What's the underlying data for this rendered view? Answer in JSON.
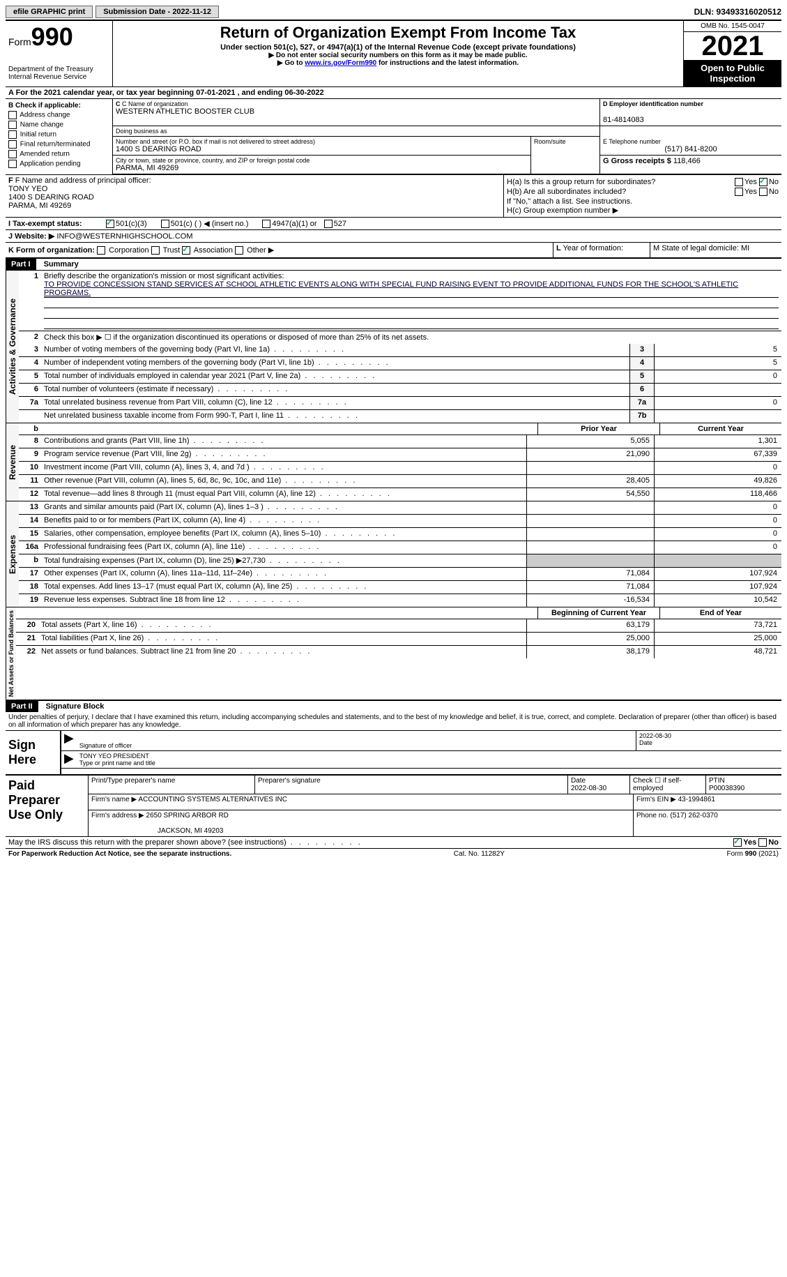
{
  "topbar": {
    "efile": "efile GRAPHIC print",
    "submission": "Submission Date - 2022-11-12",
    "dln": "DLN: 93493316020512"
  },
  "header": {
    "form_prefix": "Form",
    "form_number": "990",
    "dept": "Department of the Treasury",
    "irs": "Internal Revenue Service",
    "title": "Return of Organization Exempt From Income Tax",
    "subtitle": "Under section 501(c), 527, or 4947(a)(1) of the Internal Revenue Code (except private foundations)",
    "note1": "▶ Do not enter social security numbers on this form as it may be made public.",
    "note2_pre": "▶ Go to ",
    "note2_link": "www.irs.gov/Form990",
    "note2_post": " for instructions and the latest information.",
    "omb": "OMB No. 1545-0047",
    "year": "2021",
    "open": "Open to Public Inspection"
  },
  "sectionA": "A For the 2021 calendar year, or tax year beginning 07-01-2021   , and ending 06-30-2022",
  "colB": {
    "label": "B Check if applicable:",
    "items": [
      "Address change",
      "Name change",
      "Initial return",
      "Final return/terminated",
      "Amended return",
      "Application pending"
    ]
  },
  "colC": {
    "name_label": "C Name of organization",
    "name": "WESTERN ATHLETIC BOOSTER CLUB",
    "dba_label": "Doing business as",
    "addr_label": "Number and street (or P.O. box if mail is not delivered to street address)",
    "addr": "1400 S DEARING ROAD",
    "room_label": "Room/suite",
    "city_label": "City or town, state or province, country, and ZIP or foreign postal code",
    "city": "PARMA, MI  49269"
  },
  "colD": {
    "ein_label": "D Employer identification number",
    "ein": "81-4814083",
    "phone_label": "E Telephone number",
    "phone": "(517) 841-8200",
    "gross_label": "G Gross receipts $",
    "gross": "118,466"
  },
  "sectionF": {
    "label": "F Name and address of principal officer:",
    "name": "TONY YEO",
    "addr1": "1400 S DEARING ROAD",
    "addr2": "PARMA, MI  49269"
  },
  "sectionH": {
    "ha": "H(a)  Is this a group return for subordinates?",
    "hb": "H(b)  Are all subordinates included?",
    "hb_note": "If \"No,\" attach a list. See instructions.",
    "hc": "H(c)  Group exemption number ▶"
  },
  "rowI": {
    "label": "I  Tax-exempt status:",
    "opts": [
      "501(c)(3)",
      "501(c) (  ) ◀ (insert no.)",
      "4947(a)(1) or",
      "527"
    ]
  },
  "rowJ": {
    "label": "J  Website: ▶",
    "value": "INFO@WESTERNHIGHSCHOOL.COM"
  },
  "rowK": {
    "label": "K Form of organization:",
    "opts": [
      "Corporation",
      "Trust",
      "Association",
      "Other ▶"
    ],
    "lyear": "L Year of formation:",
    "mstate": "M State of legal domicile: MI"
  },
  "part1": {
    "header": "Part I",
    "title": "Summary",
    "mission_label": "Briefly describe the organization's mission or most significant activities:",
    "mission": "TO PROVIDE CONCESSION STAND SERVICES AT SCHOOL ATHLETIC EVENTS ALONG WITH SPECIAL FUND RAISING EVENT TO PROVIDE ADDITIONAL FUNDS FOR THE SCHOOL'S ATHLETIC PROGRAMS.",
    "line2": "Check this box ▶ ☐  if the organization discontinued its operations or disposed of more than 25% of its net assets.",
    "sides": {
      "ag": "Activities & Governance",
      "rev": "Revenue",
      "exp": "Expenses",
      "net": "Net Assets or Fund Balances"
    },
    "rows_ag": [
      {
        "n": "3",
        "d": "Number of voting members of the governing body (Part VI, line 1a)",
        "b": "3",
        "v": "5"
      },
      {
        "n": "4",
        "d": "Number of independent voting members of the governing body (Part VI, line 1b)",
        "b": "4",
        "v": "5"
      },
      {
        "n": "5",
        "d": "Total number of individuals employed in calendar year 2021 (Part V, line 2a)",
        "b": "5",
        "v": "0"
      },
      {
        "n": "6",
        "d": "Total number of volunteers (estimate if necessary)",
        "b": "6",
        "v": ""
      },
      {
        "n": "7a",
        "d": "Total unrelated business revenue from Part VIII, column (C), line 12",
        "b": "7a",
        "v": "0"
      },
      {
        "n": "",
        "d": "Net unrelated business taxable income from Form 990-T, Part I, line 11",
        "b": "7b",
        "v": ""
      }
    ],
    "col_prior": "Prior Year",
    "col_current": "Current Year",
    "rows_rev": [
      {
        "n": "8",
        "d": "Contributions and grants (Part VIII, line 1h)",
        "p": "5,055",
        "c": "1,301"
      },
      {
        "n": "9",
        "d": "Program service revenue (Part VIII, line 2g)",
        "p": "21,090",
        "c": "67,339"
      },
      {
        "n": "10",
        "d": "Investment income (Part VIII, column (A), lines 3, 4, and 7d )",
        "p": "",
        "c": "0"
      },
      {
        "n": "11",
        "d": "Other revenue (Part VIII, column (A), lines 5, 6d, 8c, 9c, 10c, and 11e)",
        "p": "28,405",
        "c": "49,826"
      },
      {
        "n": "12",
        "d": "Total revenue—add lines 8 through 11 (must equal Part VIII, column (A), line 12)",
        "p": "54,550",
        "c": "118,466"
      }
    ],
    "rows_exp": [
      {
        "n": "13",
        "d": "Grants and similar amounts paid (Part IX, column (A), lines 1–3 )",
        "p": "",
        "c": "0"
      },
      {
        "n": "14",
        "d": "Benefits paid to or for members (Part IX, column (A), line 4)",
        "p": "",
        "c": "0"
      },
      {
        "n": "15",
        "d": "Salaries, other compensation, employee benefits (Part IX, column (A), lines 5–10)",
        "p": "",
        "c": "0"
      },
      {
        "n": "16a",
        "d": "Professional fundraising fees (Part IX, column (A), line 11e)",
        "p": "",
        "c": "0"
      },
      {
        "n": "b",
        "d": "Total fundraising expenses (Part IX, column (D), line 25) ▶27,730",
        "p": "gray",
        "c": "gray"
      },
      {
        "n": "17",
        "d": "Other expenses (Part IX, column (A), lines 11a–11d, 11f–24e)",
        "p": "71,084",
        "c": "107,924"
      },
      {
        "n": "18",
        "d": "Total expenses. Add lines 13–17 (must equal Part IX, column (A), line 25)",
        "p": "71,084",
        "c": "107,924"
      },
      {
        "n": "19",
        "d": "Revenue less expenses. Subtract line 18 from line 12",
        "p": "-16,534",
        "c": "10,542"
      }
    ],
    "col_begin": "Beginning of Current Year",
    "col_end": "End of Year",
    "rows_net": [
      {
        "n": "20",
        "d": "Total assets (Part X, line 16)",
        "p": "63,179",
        "c": "73,721"
      },
      {
        "n": "21",
        "d": "Total liabilities (Part X, line 26)",
        "p": "25,000",
        "c": "25,000"
      },
      {
        "n": "22",
        "d": "Net assets or fund balances. Subtract line 21 from line 20",
        "p": "38,179",
        "c": "48,721"
      }
    ]
  },
  "part2": {
    "header": "Part II",
    "title": "Signature Block",
    "text": "Under penalties of perjury, I declare that I have examined this return, including accompanying schedules and statements, and to the best of my knowledge and belief, it is true, correct, and complete. Declaration of preparer (other than officer) is based on all information of which preparer has any knowledge.",
    "sign_here": "Sign Here",
    "sig_officer": "Signature of officer",
    "sig_date": "2022-08-30",
    "date_label": "Date",
    "officer_name": "TONY YEO  PRESIDENT",
    "type_name": "Type or print name and title",
    "paid": "Paid Preparer Use Only",
    "print_label": "Print/Type preparer's name",
    "prep_sig": "Preparer's signature",
    "prep_date_label": "Date",
    "prep_date": "2022-08-30",
    "check_self": "Check ☐ if self-employed",
    "ptin_label": "PTIN",
    "ptin": "P00038390",
    "firm_name_label": "Firm's name    ▶",
    "firm_name": "ACCOUNTING SYSTEMS ALTERNATIVES INC",
    "firm_ein_label": "Firm's EIN ▶",
    "firm_ein": "43-1994861",
    "firm_addr_label": "Firm's address ▶",
    "firm_addr1": "2650 SPRING ARBOR RD",
    "firm_addr2": "JACKSON, MI  49203",
    "firm_phone_label": "Phone no.",
    "firm_phone": "(517) 262-0370",
    "may_irs": "May the IRS discuss this return with the preparer shown above? (see instructions)"
  },
  "footer": {
    "left": "For Paperwork Reduction Act Notice, see the separate instructions.",
    "center": "Cat. No. 11282Y",
    "right": "Form 990 (2021)"
  },
  "yn": {
    "yes": "Yes",
    "no": "No"
  }
}
